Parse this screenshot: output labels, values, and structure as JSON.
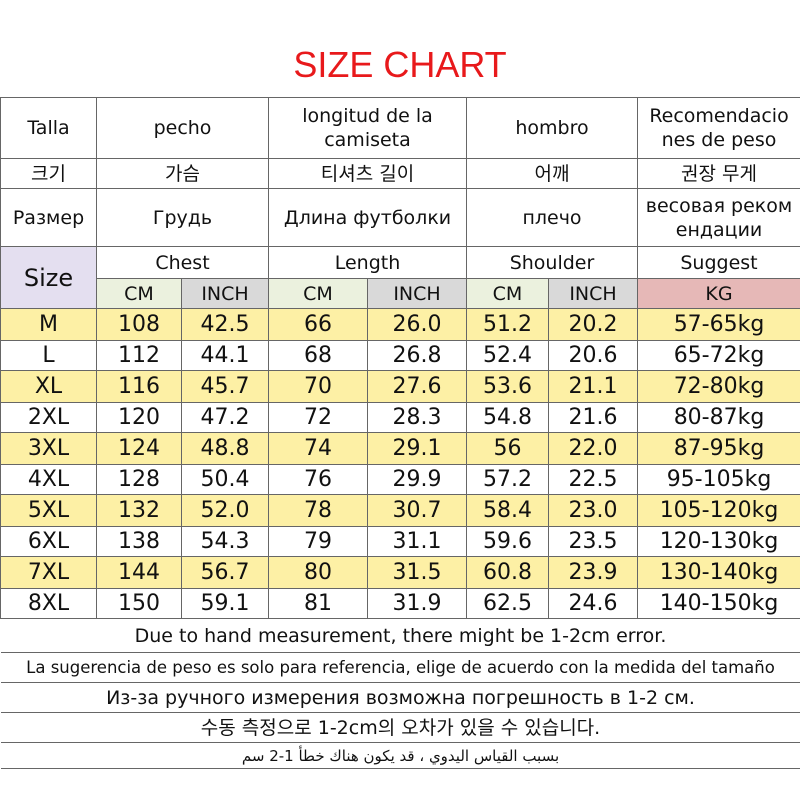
{
  "title": "SIZE CHART",
  "header_rows": [
    [
      "Talla",
      "pecho",
      "longitud de la camiseta",
      "hombro",
      "Recomendaciones de peso"
    ],
    [
      "크기",
      "가슴",
      "티셔츠 길이",
      "어깨",
      "권장 무게"
    ],
    [
      "Размер",
      "Грудь",
      "Длина футболки",
      "плечо",
      "весовая рекомендации"
    ]
  ],
  "size_label": "Size",
  "groups": [
    "Chest",
    "Length",
    "Shoulder",
    "Suggest"
  ],
  "units": [
    "CM",
    "INCH",
    "CM",
    "INCH",
    "CM",
    "INCH",
    "KG"
  ],
  "rows": [
    [
      "M",
      "108",
      "42.5",
      "66",
      "26.0",
      "51.2",
      "20.2",
      "57-65kg"
    ],
    [
      "L",
      "112",
      "44.1",
      "68",
      "26.8",
      "52.4",
      "20.6",
      "65-72kg"
    ],
    [
      "XL",
      "116",
      "45.7",
      "70",
      "27.6",
      "53.6",
      "21.1",
      "72-80kg"
    ],
    [
      "2XL",
      "120",
      "47.2",
      "72",
      "28.3",
      "54.8",
      "21.6",
      "80-87kg"
    ],
    [
      "3XL",
      "124",
      "48.8",
      "74",
      "29.1",
      "56",
      "22.0",
      "87-95kg"
    ],
    [
      "4XL",
      "128",
      "50.4",
      "76",
      "29.9",
      "57.2",
      "22.5",
      "95-105kg"
    ],
    [
      "5XL",
      "132",
      "52.0",
      "78",
      "30.7",
      "58.4",
      "23.0",
      "105-120kg"
    ],
    [
      "6XL",
      "138",
      "54.3",
      "79",
      "31.1",
      "59.6",
      "23.5",
      "120-130kg"
    ],
    [
      "7XL",
      "144",
      "56.7",
      "80",
      "31.5",
      "60.8",
      "23.9",
      "130-140kg"
    ],
    [
      "8XL",
      "150",
      "59.1",
      "81",
      "31.9",
      "62.5",
      "24.6",
      "140-150kg"
    ]
  ],
  "notes": [
    "Due to hand measurement, there might be 1-2cm error.",
    "La sugerencia de peso es solo para referencia, elige de acuerdo con la medida del tamaño",
    "Из-за ручного измерения возможна погрешность в 1-2 см.",
    "수동 측정으로 1-2cm의 오차가 있을 수 있습니다.",
    "بسبب القياس اليدوي ، قد يكون هناك خطأ 1-2 سم"
  ]
}
